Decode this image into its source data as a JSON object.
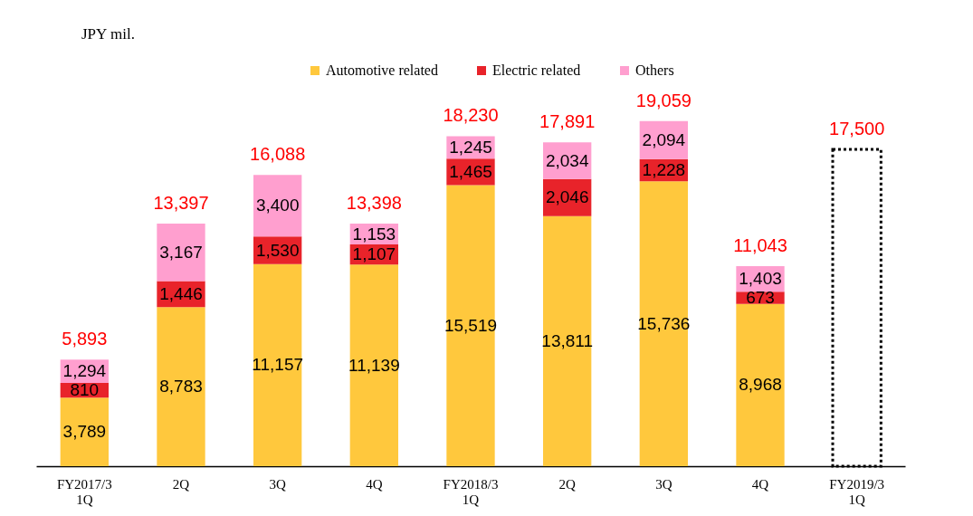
{
  "chart_data": {
    "type": "bar",
    "stacked": true,
    "legend": "top",
    "annotations": [
      "JPY mil."
    ],
    "categories": [
      "FY2017/3\n1Q",
      "2Q",
      "3Q",
      "4Q",
      "FY2018/3\n1Q",
      "2Q",
      "3Q",
      "4Q",
      "FY2019/3\n1Q"
    ],
    "series": [
      {
        "name": "Automotive related",
        "color": "#ffc83d",
        "values": [
          3789,
          8783,
          11157,
          11139,
          15519,
          13811,
          15736,
          8968,
          null
        ],
        "value_labels": [
          "3,789",
          "8,783",
          "11,157",
          "11,139",
          "15,519",
          "13,811",
          "15,736",
          "8,968",
          null
        ]
      },
      {
        "name": "Electric related",
        "color": "#e8232a",
        "values": [
          810,
          1446,
          1530,
          1107,
          1465,
          2046,
          1228,
          673,
          null
        ],
        "value_labels": [
          "810",
          "1,446",
          "1,530",
          "1,107",
          "1,465",
          "2,046",
          "1,228",
          "673",
          null
        ]
      },
      {
        "name": "Others",
        "color": "#ff9fcf",
        "values": [
          1294,
          3167,
          3400,
          1153,
          1245,
          2034,
          2094,
          1403,
          null
        ],
        "value_labels": [
          "1,294",
          "3,167",
          "3,400",
          "1,153",
          "1,245",
          "2,034",
          "2,094",
          "1,403",
          null
        ]
      },
      {
        "color": "#000000",
        "line_style": "dotted",
        "values": [
          null,
          null,
          null,
          null,
          null,
          null,
          null,
          null,
          17500
        ]
      }
    ],
    "totals": [
      "5,893",
      "13,397",
      "16,088",
      "13,398",
      "18,230",
      "17,891",
      "19,059",
      "11,043",
      "17,500"
    ]
  }
}
